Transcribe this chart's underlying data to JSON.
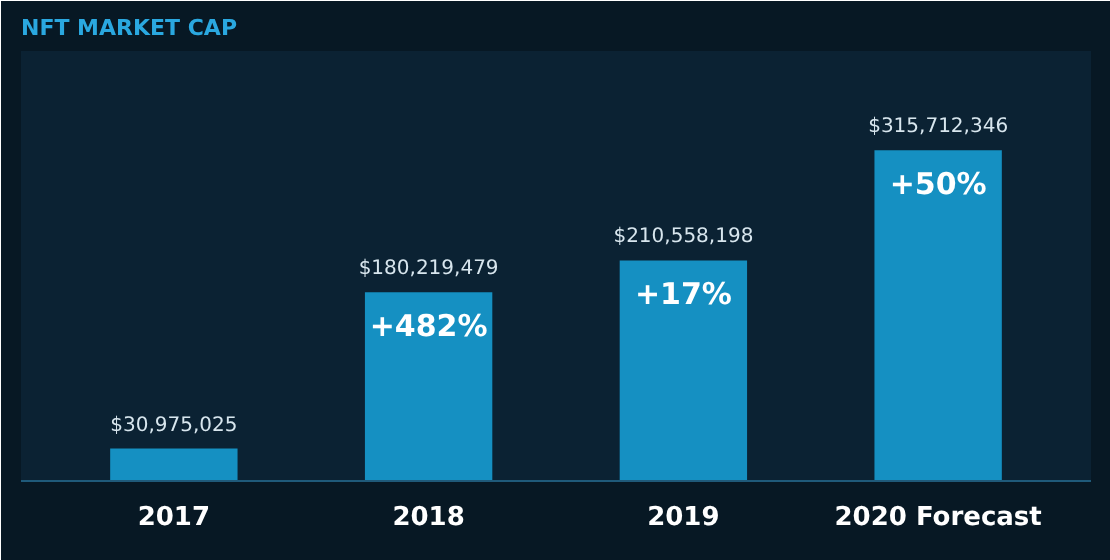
{
  "chart_data": {
    "type": "bar",
    "title": "NFT MARKET CAP",
    "categories": [
      "2017",
      "2018",
      "2019",
      "2020 Forecast"
    ],
    "values": [
      30975025,
      180219479,
      210558198,
      315712346
    ],
    "value_labels": [
      "$30,975,025",
      "$180,219,479",
      "$210,558,198",
      "$315,712,346"
    ],
    "color": "#1590c2",
    "annotations": [
      "+482%",
      "+17%",
      "+50%"
    ],
    "grid": false
  }
}
